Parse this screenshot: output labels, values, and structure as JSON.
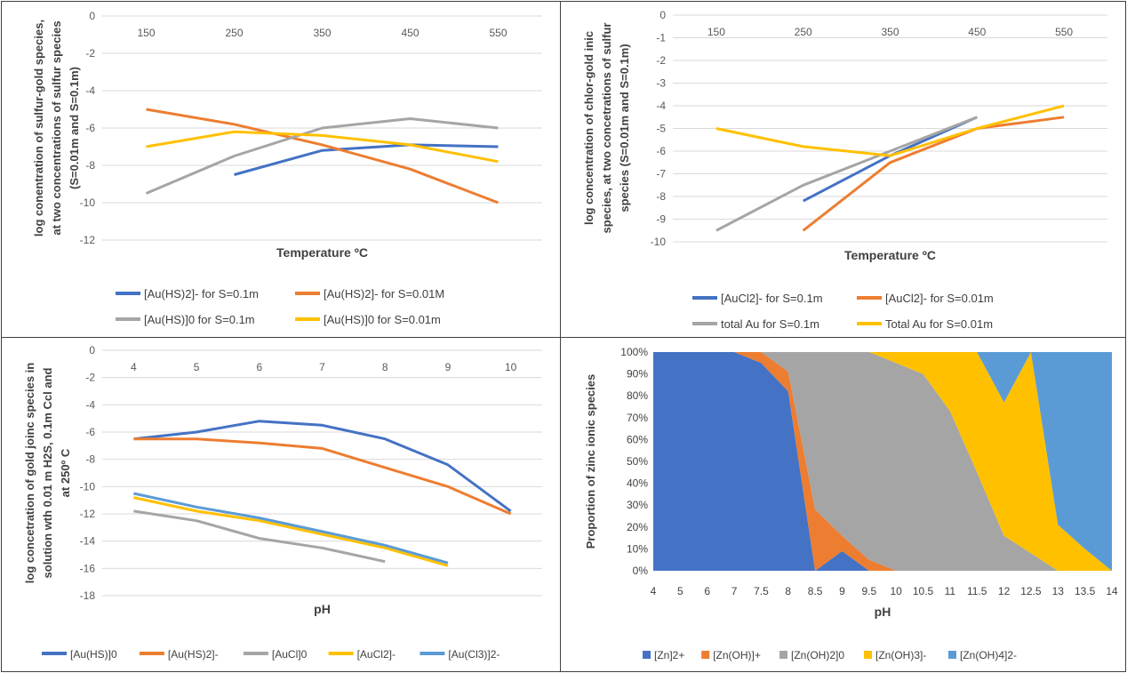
{
  "chart_data": [
    {
      "id": "c1",
      "type": "line",
      "x": [
        150,
        250,
        350,
        450,
        550
      ],
      "ylim": [
        -12,
        0
      ],
      "ytick_step": 2,
      "xlabel": "Temperature ºC",
      "ylabel": [
        "log conentration of sulfur-gold species,",
        "at two concentrations of sulfur species",
        "(S=0.01m and S=0.1m)"
      ],
      "grid": "horizontal",
      "legend": "bottom",
      "series": [
        {
          "name": "[Au(HS)2]- for S=0.1m",
          "color": "#4472C4",
          "values": [
            null,
            -8.5,
            -7.2,
            -6.9,
            -7.0
          ]
        },
        {
          "name": "[Au(HS)2]- for S=0.01M",
          "color": "#ED7D31",
          "values": [
            -5.0,
            -5.8,
            -6.9,
            -8.2,
            -10.0
          ]
        },
        {
          "name": "[Au(HS)]0 for S=0.1m",
          "color": "#A5A5A5",
          "values": [
            -9.5,
            -7.5,
            -6.0,
            -5.5,
            -6.0
          ]
        },
        {
          "name": "[Au(HS)]0 for S=0.01m",
          "color": "#FFC000",
          "values": [
            -7.0,
            -6.2,
            -6.4,
            -6.9,
            -7.8
          ]
        }
      ]
    },
    {
      "id": "c2",
      "type": "line",
      "x": [
        150,
        250,
        350,
        450,
        550
      ],
      "ylim": [
        -10,
        0
      ],
      "ytick_step": 1,
      "xlabel": "Temperature ºC",
      "ylabel": [
        "log concentration  of chlor-gold inic",
        "species, at two concetrations of sulfur",
        "species (S=0.01m and S=0.1m)"
      ],
      "grid": "horizontal",
      "legend": "bottom",
      "series": [
        {
          "name": "[AuCl2]- for S=0.1m",
          "color": "#4472C4",
          "values": [
            null,
            -8.2,
            -6.2,
            -4.5,
            null
          ]
        },
        {
          "name": "[AuCl2]- for S=0.01m",
          "color": "#ED7D31",
          "values": [
            null,
            -9.5,
            -6.5,
            -5.0,
            -4.5
          ]
        },
        {
          "name": "total Au for S=0.1m",
          "color": "#A5A5A5",
          "values": [
            -9.5,
            -7.5,
            -6.0,
            -4.5,
            null
          ]
        },
        {
          "name": "Total Au for S=0.01m",
          "color": "#FFC000",
          "values": [
            -5.0,
            -5.8,
            -6.2,
            -5.0,
            -4.0
          ]
        }
      ]
    },
    {
      "id": "c3",
      "type": "line",
      "x": [
        4,
        5,
        6,
        7,
        8,
        9,
        10
      ],
      "ylim": [
        -18,
        0
      ],
      "ytick_step": 2,
      "xlabel": "pH",
      "ylabel": [
        "log  concetration of gold joinc species in",
        "solution wth 0.01 m H2S, 0.1m Ccl and",
        "at 250º C"
      ],
      "grid": "horizontal",
      "legend": "bottom",
      "series": [
        {
          "name": "[Au(HS)]0",
          "color": "#4472C4",
          "values": [
            -6.5,
            -6.0,
            -5.2,
            -5.5,
            -6.5,
            -8.4,
            -11.8
          ]
        },
        {
          "name": "[Au(HS)2]-",
          "color": "#ED7D31",
          "values": [
            -6.5,
            -6.5,
            -6.8,
            -7.2,
            -8.6,
            -10.0,
            -12.0
          ]
        },
        {
          "name": "[AuCl]0",
          "color": "#A5A5A5",
          "values": [
            -11.8,
            -12.5,
            -13.8,
            -14.5,
            -15.5,
            null,
            null
          ]
        },
        {
          "name": "[AuCl2]-",
          "color": "#FFC000",
          "values": [
            -10.8,
            -11.8,
            -12.5,
            -13.5,
            -14.5,
            -15.8,
            null
          ]
        },
        {
          "name": "[Au(Cl3)]2-",
          "color": "#5B9BD5",
          "values": [
            -10.5,
            -11.5,
            -12.3,
            -13.3,
            -14.3,
            -15.6,
            null
          ]
        }
      ]
    },
    {
      "id": "c4",
      "type": "area",
      "stacked": "percent",
      "categories": [
        "4",
        "5",
        "6",
        "7",
        "7.5",
        "8",
        "8.5",
        "9",
        "9.5",
        "10",
        "10.5",
        "11",
        "11.5",
        "12",
        "12.5",
        "13",
        "13.5",
        "14"
      ],
      "ylim": [
        0,
        100
      ],
      "ytick_step": 10,
      "xlabel": "pH",
      "ylabel": [
        "Proportion of zinc ionic species"
      ],
      "legend": "bottom",
      "series": [
        {
          "name": "[Zn]2+",
          "color": "#4472C4",
          "values": [
            100,
            100,
            100,
            100,
            95,
            82,
            0,
            9,
            0,
            0,
            0,
            0,
            0,
            0,
            0,
            0,
            0,
            0
          ]
        },
        {
          "name": "[Zn(OH)]+",
          "color": "#ED7D31",
          "values": [
            0,
            0,
            0,
            0,
            5,
            9,
            28,
            7,
            5,
            0,
            0,
            0,
            0,
            0,
            0,
            0,
            0,
            0
          ]
        },
        {
          "name": "[Zn(OH)2]0",
          "color": "#A5A5A5",
          "values": [
            0,
            0,
            0,
            0,
            0,
            9,
            72,
            84,
            95,
            95,
            90,
            73,
            45,
            16,
            8,
            0,
            0,
            0
          ]
        },
        {
          "name": "[Zn(OH)3]-",
          "color": "#FFC000",
          "values": [
            0,
            0,
            0,
            0,
            0,
            0,
            0,
            0,
            0,
            5,
            10,
            27,
            55,
            61,
            92,
            21,
            10,
            0
          ]
        },
        {
          "name": "[Zn(OH)4]2-",
          "color": "#5B9BD5",
          "values": [
            0,
            0,
            0,
            0,
            0,
            0,
            0,
            0,
            0,
            0,
            0,
            0,
            0,
            23,
            0,
            79,
            90,
            100
          ]
        }
      ]
    }
  ]
}
